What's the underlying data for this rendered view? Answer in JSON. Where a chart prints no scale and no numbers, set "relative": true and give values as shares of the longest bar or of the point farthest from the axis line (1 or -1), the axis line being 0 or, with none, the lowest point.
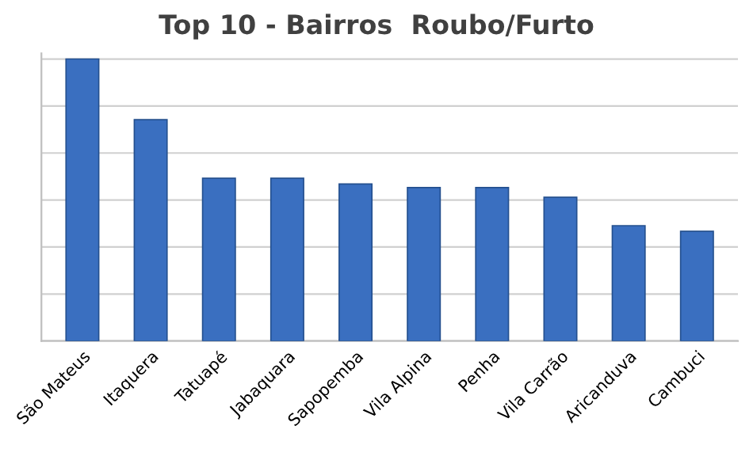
{
  "chart_data": {
    "type": "bar",
    "title": "Top 10 - Bairros  Roubo/Furto",
    "categories": [
      "São Mateus",
      "Itaquera",
      "Tatuapé",
      "Jabaquara",
      "Sapopemba",
      "Vila Alpina",
      "Penha",
      "Vila Carrão",
      "Aricanduva",
      "Cambuci"
    ],
    "values": [
      1,
      0.785,
      0.577,
      0.577,
      0.557,
      0.544,
      0.544,
      0.51,
      0.409,
      0.389
    ],
    "color": "#3a6fc0",
    "relative": true,
    "grid": "y",
    "legend": false
  }
}
